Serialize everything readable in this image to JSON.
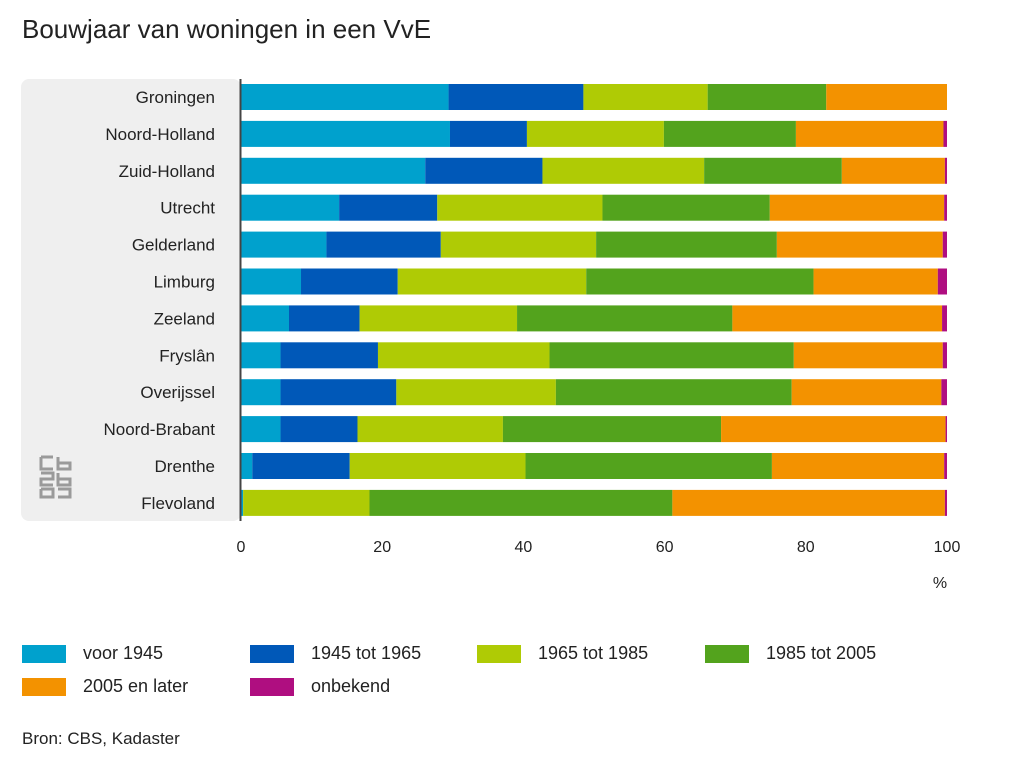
{
  "title": "Bouwjaar van woningen in een VvE",
  "source": "Bron: CBS, Kadaster",
  "logo_icon": "cbs-logo-icon",
  "chart_data": {
    "type": "bar",
    "orientation": "horizontal",
    "stacked": true,
    "title": "Bouwjaar van woningen in een VvE",
    "xlabel": "%",
    "ylabel": "",
    "xlim": [
      0,
      100
    ],
    "xticks": [
      "0",
      "20",
      "40",
      "60",
      "80",
      "100"
    ],
    "grid": false,
    "legend_position": "bottom",
    "categories": [
      "Groningen",
      "Noord-Holland",
      "Zuid-Holland",
      "Utrecht",
      "Gelderland",
      "Limburg",
      "Zeeland",
      "Fryslân",
      "Overijssel",
      "Noord-Brabant",
      "Drenthe",
      "Flevoland"
    ],
    "series": [
      {
        "name": "voor 1945",
        "color": "#00a1cd",
        "values": [
          29.4,
          29.6,
          26.1,
          13.9,
          12.1,
          8.5,
          6.8,
          5.6,
          5.6,
          5.6,
          1.6,
          0.3
        ]
      },
      {
        "name": "1945 tot 1965",
        "color": "#0058b8",
        "values": [
          19.1,
          10.9,
          16.6,
          13.9,
          16.2,
          13.7,
          10.0,
          13.8,
          16.4,
          10.9,
          13.8,
          0.0
        ]
      },
      {
        "name": "1965 tot 1985",
        "color": "#afcb05",
        "values": [
          17.6,
          19.4,
          22.9,
          23.4,
          22.0,
          26.7,
          22.3,
          24.3,
          22.6,
          20.6,
          24.9,
          17.9
        ]
      },
      {
        "name": "1985 tot 2005",
        "color": "#53a31d",
        "values": [
          16.8,
          18.7,
          19.5,
          23.7,
          25.6,
          32.2,
          30.5,
          34.6,
          33.4,
          30.9,
          34.9,
          42.9
        ]
      },
      {
        "name": "2005 en later",
        "color": "#f39200",
        "values": [
          17.1,
          20.9,
          14.6,
          24.7,
          23.5,
          17.6,
          29.7,
          21.1,
          21.2,
          31.8,
          24.4,
          38.6
        ]
      },
      {
        "name": "onbekend",
        "color": "#af0e80",
        "values": [
          0.0,
          0.5,
          0.3,
          0.4,
          0.6,
          1.3,
          0.7,
          0.6,
          0.8,
          0.2,
          0.4,
          0.3
        ]
      }
    ]
  }
}
